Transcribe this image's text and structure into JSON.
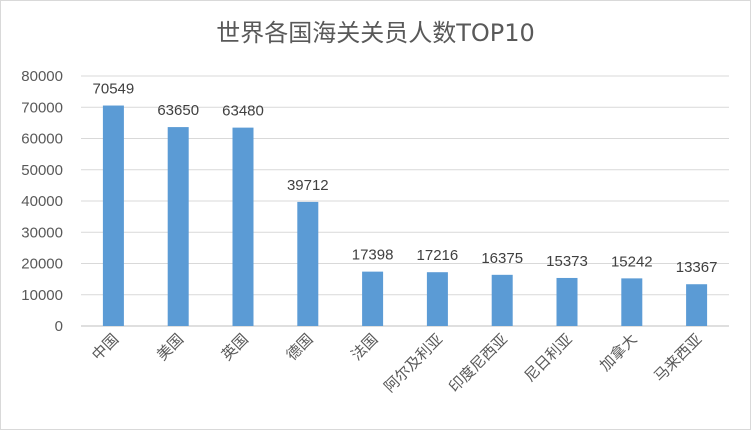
{
  "chart_data": {
    "type": "bar",
    "title": "世界各国海关关员人数TOP10",
    "xlabel": "",
    "ylabel": "",
    "categories": [
      "中国",
      "美国",
      "英国",
      "德国",
      "法国",
      "阿尔及利亚",
      "印度尼西亚",
      "尼日利亚",
      "加拿大",
      "马来西亚"
    ],
    "values": [
      70549,
      63650,
      63480,
      39712,
      17398,
      17216,
      16375,
      15373,
      15242,
      13367
    ],
    "ylim": [
      0,
      80000
    ],
    "yticks": [
      "0",
      "10000",
      "20000",
      "30000",
      "40000",
      "50000",
      "60000",
      "70000",
      "80000"
    ],
    "grid": true,
    "legend": "none",
    "bar_color": "#5b9bd5",
    "grid_color": "#d9d9d9"
  }
}
